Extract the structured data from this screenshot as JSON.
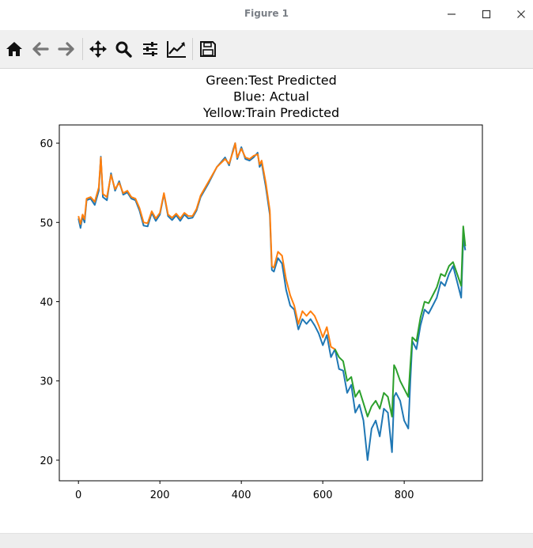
{
  "window": {
    "title": "Figure 1",
    "controls": [
      "minimize-icon",
      "maximize-icon",
      "close-icon"
    ]
  },
  "toolbar": {
    "tools": [
      "home-icon",
      "back-arrow-icon",
      "forward-arrow-icon",
      "pan-icon",
      "zoom-icon",
      "configure-subplots-icon",
      "edit-axis-icon",
      "save-icon"
    ]
  },
  "chart_data": {
    "type": "line",
    "title_lines": [
      "Green:Test Predicted",
      "Blue: Actual",
      "Yellow:Train Predicted"
    ],
    "xlabel": "",
    "ylabel": "",
    "xlim": [
      -47,
      992
    ],
    "ylim": [
      17.4,
      62.3
    ],
    "x_ticks": [
      0,
      200,
      400,
      600,
      800
    ],
    "y_ticks": [
      20,
      30,
      40,
      50,
      60
    ],
    "grid": false,
    "series": [
      {
        "color": "#1f77b4",
        "points": [
          [
            0,
            50.5
          ],
          [
            5,
            49.3
          ],
          [
            10,
            50.8
          ],
          [
            15,
            50.0
          ],
          [
            20,
            52.8
          ],
          [
            30,
            53.0
          ],
          [
            40,
            52.2
          ],
          [
            50,
            54.0
          ],
          [
            55,
            58.3
          ],
          [
            60,
            53.2
          ],
          [
            70,
            52.8
          ],
          [
            80,
            56.2
          ],
          [
            90,
            54.0
          ],
          [
            100,
            55.2
          ],
          [
            110,
            53.5
          ],
          [
            120,
            53.8
          ],
          [
            130,
            53.0
          ],
          [
            140,
            52.8
          ],
          [
            150,
            51.5
          ],
          [
            160,
            49.6
          ],
          [
            170,
            49.5
          ],
          [
            180,
            51.2
          ],
          [
            190,
            50.2
          ],
          [
            200,
            51.0
          ],
          [
            210,
            53.6
          ],
          [
            220,
            50.8
          ],
          [
            230,
            50.3
          ],
          [
            240,
            50.9
          ],
          [
            250,
            50.2
          ],
          [
            260,
            51.0
          ],
          [
            270,
            50.5
          ],
          [
            280,
            50.6
          ],
          [
            290,
            51.5
          ],
          [
            300,
            53.2
          ],
          [
            320,
            55.0
          ],
          [
            340,
            57.0
          ],
          [
            360,
            58.2
          ],
          [
            370,
            57.2
          ],
          [
            380,
            59.2
          ],
          [
            385,
            60.0
          ],
          [
            390,
            58.0
          ],
          [
            400,
            59.5
          ],
          [
            410,
            58.0
          ],
          [
            420,
            57.8
          ],
          [
            430,
            58.2
          ],
          [
            440,
            58.8
          ],
          [
            445,
            57.0
          ],
          [
            450,
            57.5
          ],
          [
            460,
            54.5
          ],
          [
            470,
            51.0
          ],
          [
            475,
            44.0
          ],
          [
            480,
            43.8
          ],
          [
            490,
            45.5
          ],
          [
            500,
            44.8
          ],
          [
            510,
            41.5
          ],
          [
            520,
            39.5
          ],
          [
            530,
            39.0
          ],
          [
            540,
            36.5
          ],
          [
            550,
            37.8
          ],
          [
            560,
            37.2
          ],
          [
            570,
            37.8
          ],
          [
            580,
            37.0
          ],
          [
            590,
            36.0
          ],
          [
            600,
            34.5
          ],
          [
            610,
            35.8
          ],
          [
            620,
            33.0
          ],
          [
            630,
            34.0
          ],
          [
            640,
            31.5
          ],
          [
            650,
            31.3
          ],
          [
            660,
            28.5
          ],
          [
            670,
            29.5
          ],
          [
            680,
            26.0
          ],
          [
            690,
            27.0
          ],
          [
            700,
            25.0
          ],
          [
            710,
            20.0
          ],
          [
            720,
            24.0
          ],
          [
            730,
            25.0
          ],
          [
            740,
            23.0
          ],
          [
            750,
            26.5
          ],
          [
            760,
            26.0
          ],
          [
            770,
            21.0
          ],
          [
            775,
            28.0
          ],
          [
            780,
            28.5
          ],
          [
            790,
            27.5
          ],
          [
            800,
            25.0
          ],
          [
            810,
            24.0
          ],
          [
            815,
            30.0
          ],
          [
            820,
            35.0
          ],
          [
            830,
            34.0
          ],
          [
            840,
            37.0
          ],
          [
            850,
            39.0
          ],
          [
            860,
            38.5
          ],
          [
            870,
            39.5
          ],
          [
            880,
            40.5
          ],
          [
            890,
            42.5
          ],
          [
            900,
            42.0
          ],
          [
            910,
            43.5
          ],
          [
            920,
            44.5
          ],
          [
            930,
            42.5
          ],
          [
            940,
            40.5
          ],
          [
            945,
            48.0
          ],
          [
            950,
            46.5
          ]
        ]
      },
      {
        "color": "#ff7f0e",
        "points": [
          [
            0,
            50.8
          ],
          [
            5,
            49.8
          ],
          [
            10,
            51.0
          ],
          [
            15,
            50.4
          ],
          [
            20,
            53.0
          ],
          [
            30,
            53.2
          ],
          [
            40,
            52.6
          ],
          [
            50,
            54.4
          ],
          [
            55,
            58.2
          ],
          [
            60,
            53.6
          ],
          [
            70,
            53.2
          ],
          [
            80,
            56.0
          ],
          [
            90,
            54.2
          ],
          [
            100,
            55.0
          ],
          [
            110,
            53.7
          ],
          [
            120,
            54.0
          ],
          [
            130,
            53.2
          ],
          [
            140,
            53.0
          ],
          [
            150,
            51.8
          ],
          [
            160,
            50.0
          ],
          [
            170,
            49.9
          ],
          [
            180,
            51.4
          ],
          [
            190,
            50.5
          ],
          [
            200,
            51.2
          ],
          [
            210,
            53.7
          ],
          [
            220,
            51.0
          ],
          [
            230,
            50.6
          ],
          [
            240,
            51.1
          ],
          [
            250,
            50.5
          ],
          [
            260,
            51.2
          ],
          [
            270,
            50.8
          ],
          [
            280,
            50.8
          ],
          [
            290,
            51.7
          ],
          [
            300,
            53.4
          ],
          [
            320,
            55.2
          ],
          [
            340,
            57.0
          ],
          [
            360,
            58.0
          ],
          [
            370,
            57.4
          ],
          [
            380,
            59.0
          ],
          [
            385,
            60.0
          ],
          [
            390,
            58.2
          ],
          [
            400,
            59.3
          ],
          [
            410,
            58.2
          ],
          [
            420,
            58.0
          ],
          [
            430,
            58.4
          ],
          [
            440,
            58.6
          ],
          [
            445,
            57.3
          ],
          [
            450,
            57.8
          ],
          [
            460,
            55.0
          ],
          [
            470,
            51.5
          ],
          [
            475,
            44.5
          ],
          [
            480,
            44.3
          ],
          [
            490,
            46.3
          ],
          [
            500,
            45.8
          ],
          [
            510,
            42.8
          ],
          [
            520,
            40.8
          ],
          [
            530,
            39.5
          ],
          [
            540,
            37.2
          ],
          [
            550,
            38.8
          ],
          [
            560,
            38.2
          ],
          [
            570,
            38.8
          ],
          [
            580,
            38.2
          ],
          [
            590,
            37.0
          ],
          [
            600,
            35.5
          ],
          [
            610,
            36.8
          ],
          [
            620,
            34.3
          ],
          [
            630,
            34.0
          ]
        ]
      },
      {
        "color": "#2ca02c",
        "points": [
          [
            630,
            34.0
          ],
          [
            640,
            33.0
          ],
          [
            650,
            32.5
          ],
          [
            660,
            30.0
          ],
          [
            670,
            30.5
          ],
          [
            680,
            28.0
          ],
          [
            690,
            28.8
          ],
          [
            700,
            27.2
          ],
          [
            710,
            25.5
          ],
          [
            720,
            26.8
          ],
          [
            730,
            27.5
          ],
          [
            740,
            26.5
          ],
          [
            750,
            28.5
          ],
          [
            760,
            28.0
          ],
          [
            770,
            25.5
          ],
          [
            775,
            32.0
          ],
          [
            780,
            31.5
          ],
          [
            790,
            30.0
          ],
          [
            800,
            29.0
          ],
          [
            810,
            28.0
          ],
          [
            815,
            32.0
          ],
          [
            820,
            35.5
          ],
          [
            830,
            35.0
          ],
          [
            840,
            38.0
          ],
          [
            850,
            40.0
          ],
          [
            860,
            39.8
          ],
          [
            870,
            40.8
          ],
          [
            880,
            41.8
          ],
          [
            890,
            43.5
          ],
          [
            900,
            43.2
          ],
          [
            910,
            44.5
          ],
          [
            920,
            45.0
          ],
          [
            930,
            43.5
          ],
          [
            940,
            42.0
          ],
          [
            945,
            49.5
          ],
          [
            950,
            47.0
          ]
        ]
      }
    ]
  }
}
